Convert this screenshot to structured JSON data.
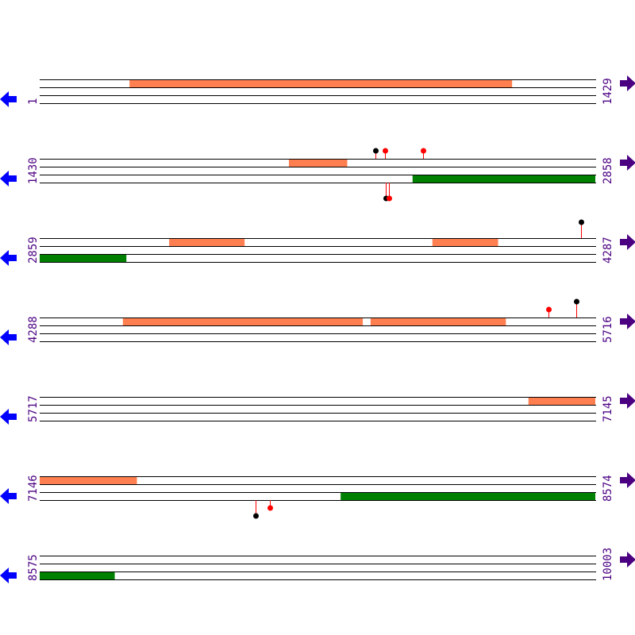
{
  "colors": {
    "forward_feature": "#ff7f50",
    "reverse_feature": "#008000",
    "line": "#000000",
    "left_arrow": "#0000ff",
    "right_arrow": "#4b0082",
    "label": "#4b0082",
    "marker_black": "#000000",
    "marker_red": "#ff0000"
  },
  "icons": {
    "left": "arrow-left-icon",
    "right": "arrow-right-icon"
  },
  "rows": [
    {
      "start": "1",
      "end": "1429",
      "forward": [
        [
          232,
          1215
        ]
      ],
      "reverse": [],
      "markers": []
    },
    {
      "start": "1430",
      "end": "2858",
      "forward": [
        [
          2071,
          2220
        ]
      ],
      "reverse": [
        [
          2389,
          2858
        ]
      ],
      "markers": [
        {
          "pos": 2294,
          "side": "top",
          "color": "black",
          "len": 1
        },
        {
          "pos": 2319,
          "side": "top",
          "color": "red",
          "len": 1
        },
        {
          "pos": 2417,
          "side": "top",
          "color": "red",
          "len": 1
        },
        {
          "pos": 2321,
          "side": "bottom",
          "color": "black",
          "len": 2
        },
        {
          "pos": 2329,
          "side": "bottom",
          "color": "red",
          "len": 2
        }
      ]
    },
    {
      "start": "2859",
      "end": "4287",
      "forward": [
        [
          3192,
          3385
        ],
        [
          3869,
          4037
        ]
      ],
      "reverse": [
        [
          2859,
          3081
        ]
      ],
      "markers": [
        {
          "pos": 4251,
          "side": "top",
          "color": "black",
          "len": 2
        }
      ]
    },
    {
      "start": "4288",
      "end": "5716",
      "forward": [
        [
          4502,
          5118
        ],
        [
          5139,
          5486
        ]
      ],
      "reverse": [],
      "markers": [
        {
          "pos": 5596,
          "side": "top",
          "color": "red",
          "len": 1
        },
        {
          "pos": 5668,
          "side": "top",
          "color": "black",
          "len": 2
        }
      ]
    },
    {
      "start": "5717",
      "end": "7145",
      "forward": [
        [
          6974,
          7145
        ]
      ],
      "reverse": [],
      "markers": []
    },
    {
      "start": "7146",
      "end": "8574",
      "forward": [
        [
          7146,
          7395
        ]
      ],
      "reverse": [
        [
          7920,
          8574
        ]
      ],
      "markers": [
        {
          "pos": 7701,
          "side": "bottom",
          "color": "black",
          "len": 2
        },
        {
          "pos": 7738,
          "side": "bottom",
          "color": "red",
          "len": 1
        }
      ]
    },
    {
      "start": "8575",
      "end": "10003",
      "forward": [],
      "reverse": [
        [
          8575,
          8767
        ]
      ],
      "markers": []
    }
  ]
}
